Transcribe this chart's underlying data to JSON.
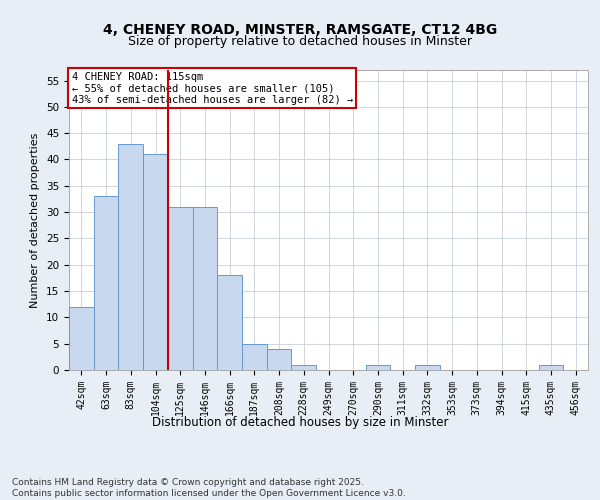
{
  "title1": "4, CHENEY ROAD, MINSTER, RAMSGATE, CT12 4BG",
  "title2": "Size of property relative to detached houses in Minster",
  "xlabel": "Distribution of detached houses by size in Minster",
  "ylabel": "Number of detached properties",
  "categories": [
    "42sqm",
    "63sqm",
    "83sqm",
    "104sqm",
    "125sqm",
    "146sqm",
    "166sqm",
    "187sqm",
    "208sqm",
    "228sqm",
    "249sqm",
    "270sqm",
    "290sqm",
    "311sqm",
    "332sqm",
    "353sqm",
    "373sqm",
    "394sqm",
    "415sqm",
    "435sqm",
    "456sqm"
  ],
  "values": [
    12,
    33,
    43,
    41,
    31,
    31,
    18,
    5,
    4,
    1,
    0,
    0,
    1,
    0,
    1,
    0,
    0,
    0,
    0,
    1,
    0
  ],
  "bar_color": "#c8d8ee",
  "bar_edge_color": "#6699cc",
  "vline_x": 3.5,
  "vline_color": "#cc0000",
  "annotation_text": "4 CHENEY ROAD: 115sqm\n← 55% of detached houses are smaller (105)\n43% of semi-detached houses are larger (82) →",
  "annotation_box_color": "#ffffff",
  "annotation_box_edge": "#cc0000",
  "ylim": [
    0,
    57
  ],
  "yticks": [
    0,
    5,
    10,
    15,
    20,
    25,
    30,
    35,
    40,
    45,
    50,
    55
  ],
  "bg_color": "#e8eef5",
  "plot_bg": "#ffffff",
  "footer": "Contains HM Land Registry data © Crown copyright and database right 2025.\nContains public sector information licensed under the Open Government Licence v3.0.",
  "title1_fontsize": 10,
  "title2_fontsize": 9,
  "ylabel_fontsize": 8,
  "xlabel_fontsize": 8.5,
  "tick_fontsize": 7,
  "footer_fontsize": 6.5,
  "annot_fontsize": 7.5
}
